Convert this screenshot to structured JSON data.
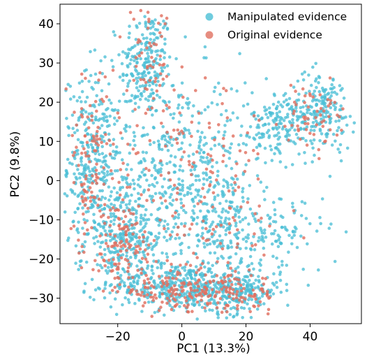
{
  "chart_data": {
    "type": "scatter",
    "title": "",
    "xlabel": "PC1 (13.3%)",
    "ylabel": "PC2 (9.8%)",
    "xlim": [
      -38,
      56
    ],
    "ylim": [
      -36.5,
      45
    ],
    "xticks": [
      -20,
      0,
      20,
      40
    ],
    "yticks": [
      -30,
      -20,
      -10,
      0,
      10,
      20,
      30,
      40
    ],
    "grid": false,
    "legend_position": "top-right",
    "series": [
      {
        "name": "Manipulated evidence",
        "color": "#4bbfd6",
        "approx_count": 2500,
        "clusters": [
          {
            "cx": -11,
            "cy": 30,
            "sx": 4,
            "sy": 7,
            "n": 220
          },
          {
            "cx": -28,
            "cy": 5,
            "sx": 4.5,
            "sy": 11,
            "n": 340
          },
          {
            "cx": -18,
            "cy": -15,
            "sx": 6,
            "sy": 7,
            "n": 300
          },
          {
            "cx": -2,
            "cy": -27,
            "sx": 9,
            "sy": 3,
            "n": 330
          },
          {
            "cx": 17,
            "cy": -28,
            "sx": 7,
            "sy": 3,
            "n": 260
          },
          {
            "cx": 0,
            "cy": 5,
            "sx": 12,
            "sy": 11,
            "n": 420
          },
          {
            "cx": 32,
            "cy": 15,
            "sx": 5,
            "sy": 4,
            "n": 170
          },
          {
            "cx": 44,
            "cy": 18,
            "sx": 5,
            "sy": 5,
            "n": 170
          },
          {
            "cx": 10,
            "cy": -12,
            "sx": 10,
            "sy": 6,
            "n": 200
          },
          {
            "cx": 30,
            "cy": -14,
            "sx": 7,
            "sy": 5,
            "n": 90
          }
        ]
      },
      {
        "name": "Original evidence",
        "color": "#e07060",
        "approx_count": 700,
        "clusters": [
          {
            "cx": -28,
            "cy": 4,
            "sx": 4,
            "sy": 11,
            "n": 110
          },
          {
            "cx": -18,
            "cy": -17,
            "sx": 6,
            "sy": 6,
            "n": 110
          },
          {
            "cx": -2,
            "cy": -28,
            "sx": 9,
            "sy": 2.5,
            "n": 130
          },
          {
            "cx": 16,
            "cy": -29,
            "sx": 7,
            "sy": 2.5,
            "n": 100
          },
          {
            "cx": -10,
            "cy": 30,
            "sx": 3.5,
            "sy": 7,
            "n": 60
          },
          {
            "cx": 2,
            "cy": 5,
            "sx": 12,
            "sy": 10,
            "n": 110
          },
          {
            "cx": 40,
            "cy": 16,
            "sx": 7,
            "sy": 4,
            "n": 60
          },
          {
            "cx": 12,
            "cy": -12,
            "sx": 10,
            "sy": 5,
            "n": 50
          }
        ]
      }
    ]
  }
}
